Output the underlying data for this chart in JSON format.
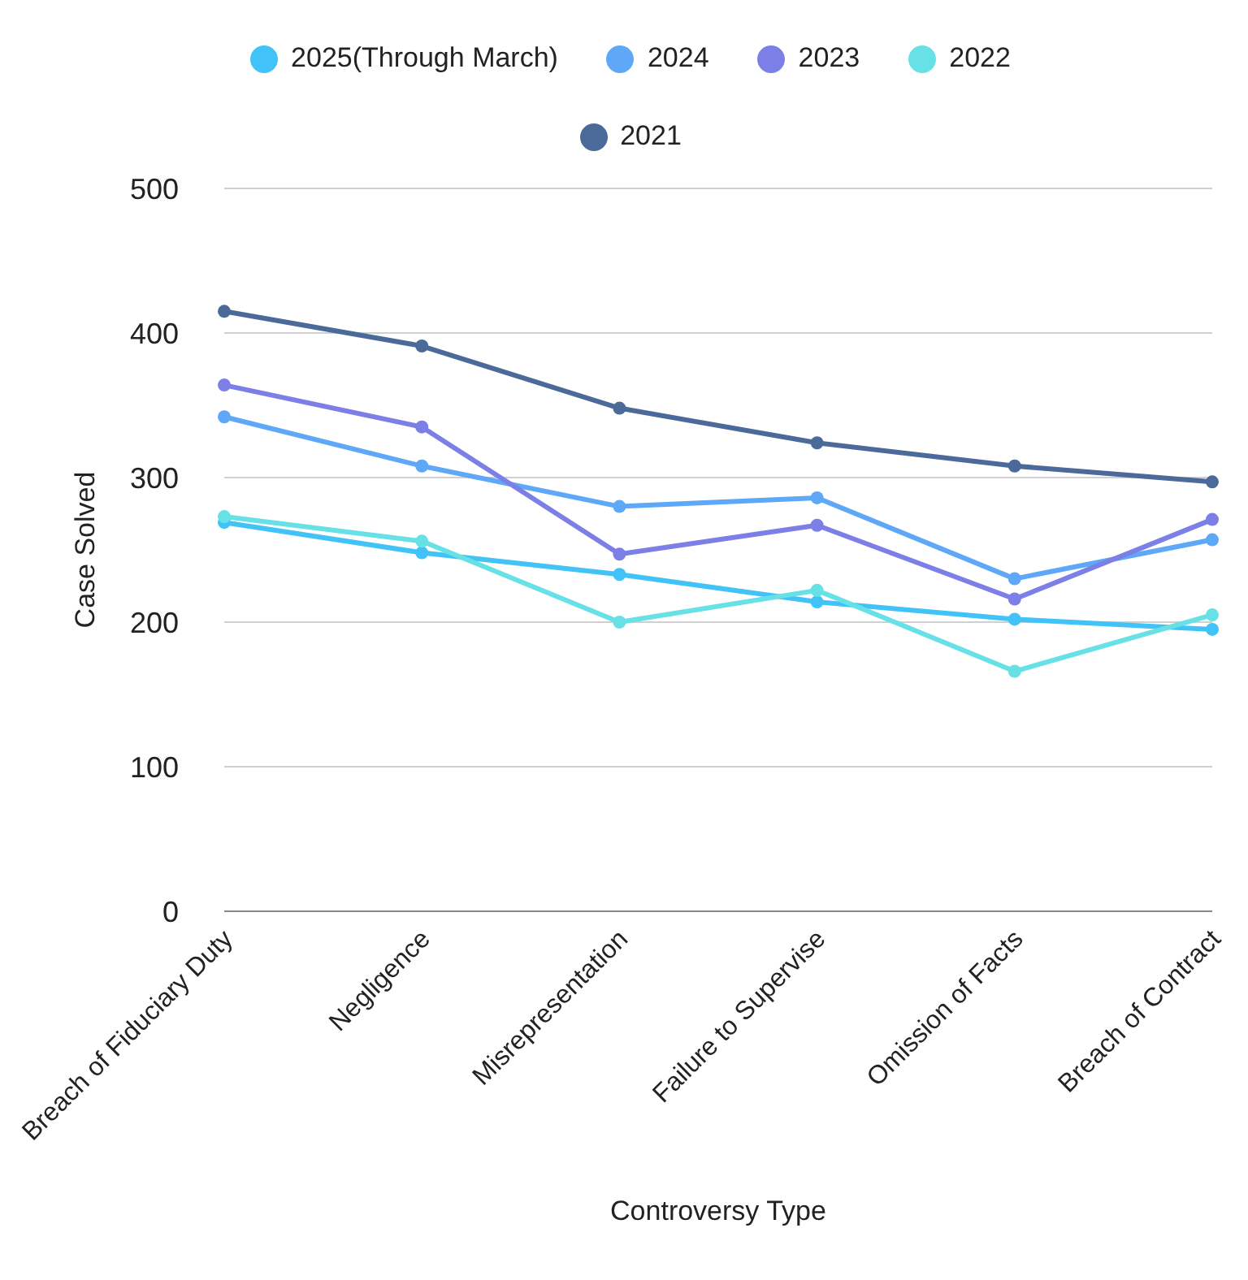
{
  "chart_data": {
    "type": "line",
    "xlabel": "Controversy Type",
    "ylabel": "Case Solved",
    "categories": [
      "Breach of Fiduciary Duty",
      "Negligence",
      "Misrepresentation",
      "Failure to Supervise",
      "Omission of Facts",
      "Breach of Contract"
    ],
    "series": [
      {
        "name": "2025(Through March)",
        "color": "#41c3f8",
        "values": [
          269,
          248,
          233,
          214,
          202,
          195
        ]
      },
      {
        "name": "2024",
        "color": "#5ea8f7",
        "values": [
          342,
          308,
          280,
          286,
          230,
          257
        ]
      },
      {
        "name": "2023",
        "color": "#7b7fe6",
        "values": [
          364,
          335,
          247,
          267,
          216,
          271
        ]
      },
      {
        "name": "2022",
        "color": "#67e1e6",
        "values": [
          273,
          256,
          200,
          222,
          166,
          205
        ]
      },
      {
        "name": "2021",
        "color": "#4b6a99",
        "values": [
          415,
          391,
          348,
          324,
          308,
          297
        ]
      }
    ],
    "ylim": [
      0,
      500
    ],
    "yticks": [
      0,
      100,
      200,
      300,
      400,
      500
    ],
    "grid": "y",
    "legend": "top",
    "marker": "circle",
    "line_style": "solid"
  }
}
